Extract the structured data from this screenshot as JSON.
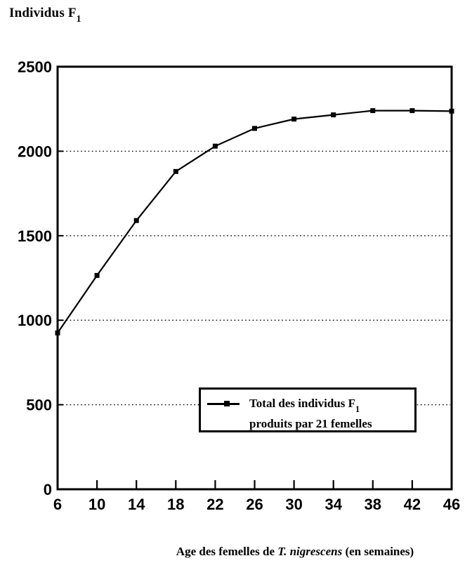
{
  "title": {
    "text": "Individus F",
    "sub": "1"
  },
  "legend": {
    "line1_text": "Total des individus F",
    "line1_sub": "1",
    "line2": "produits par 21 femelles"
  },
  "xlabel": {
    "prefix": "Age des femelles de ",
    "italic": "T. nigrescens",
    "suffix": " (en semaines)"
  },
  "chart_data": {
    "type": "line",
    "title": "Individus F1",
    "ylabel": "Individus F1",
    "xlabel": "Age des femelles de T. nigrescens (en semaines)",
    "x": [
      6,
      10,
      14,
      18,
      22,
      26,
      30,
      34,
      38,
      42,
      46
    ],
    "series": [
      {
        "name": "Total des individus F1 produits par 21 femelles",
        "values": [
          925,
          1265,
          1590,
          1880,
          2030,
          2135,
          2190,
          2215,
          2240,
          2240,
          2237
        ],
        "color": "#000000",
        "marker": "filled-square"
      }
    ],
    "xlim": [
      6,
      46
    ],
    "ylim": [
      0,
      2500
    ],
    "xticks": [
      6,
      10,
      14,
      18,
      22,
      26,
      30,
      34,
      38,
      42,
      46
    ],
    "yticks": [
      0,
      500,
      1000,
      1500,
      2000,
      2500
    ],
    "ygrid": [
      500,
      1000,
      1500,
      2000
    ],
    "grid_style": "dotted-horizontal",
    "legend_position": "inside-bottom-right",
    "frame": true
  }
}
